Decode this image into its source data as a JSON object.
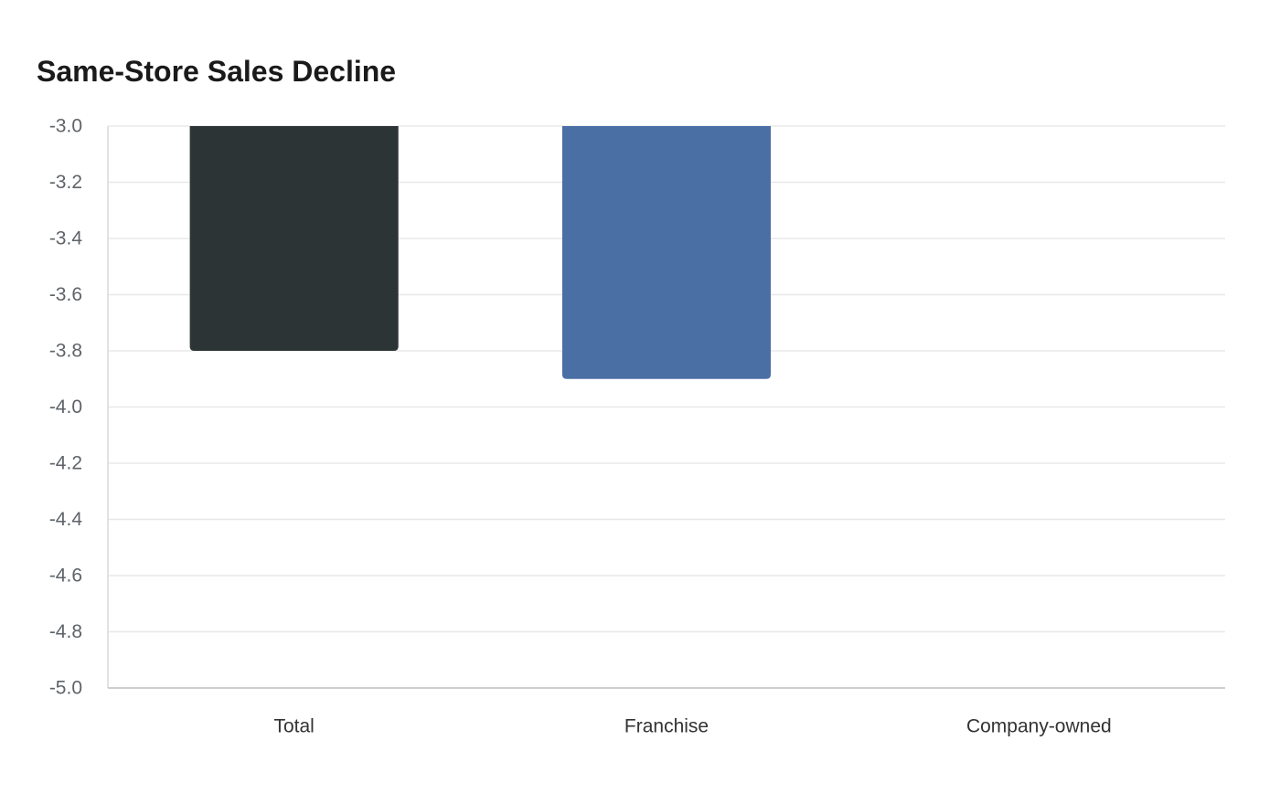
{
  "chart_data": {
    "type": "bar",
    "title": "Same-Store Sales Decline",
    "xlabel": "",
    "ylabel": "",
    "categories": [
      "Total",
      "Franchise",
      "Company-owned"
    ],
    "values": [
      -3.8,
      -3.9,
      null
    ],
    "colors": [
      "#2d3436",
      "#4a6fa5",
      "#8a94a0"
    ],
    "ylim": [
      -5.0,
      -3.0
    ],
    "yticks": [
      "-3.0",
      "-3.2",
      "-3.4",
      "-3.6",
      "-3.8",
      "-4.0",
      "-4.2",
      "-4.4",
      "-4.6",
      "-4.8",
      "-5.0"
    ],
    "grid": true,
    "legend": "none"
  }
}
